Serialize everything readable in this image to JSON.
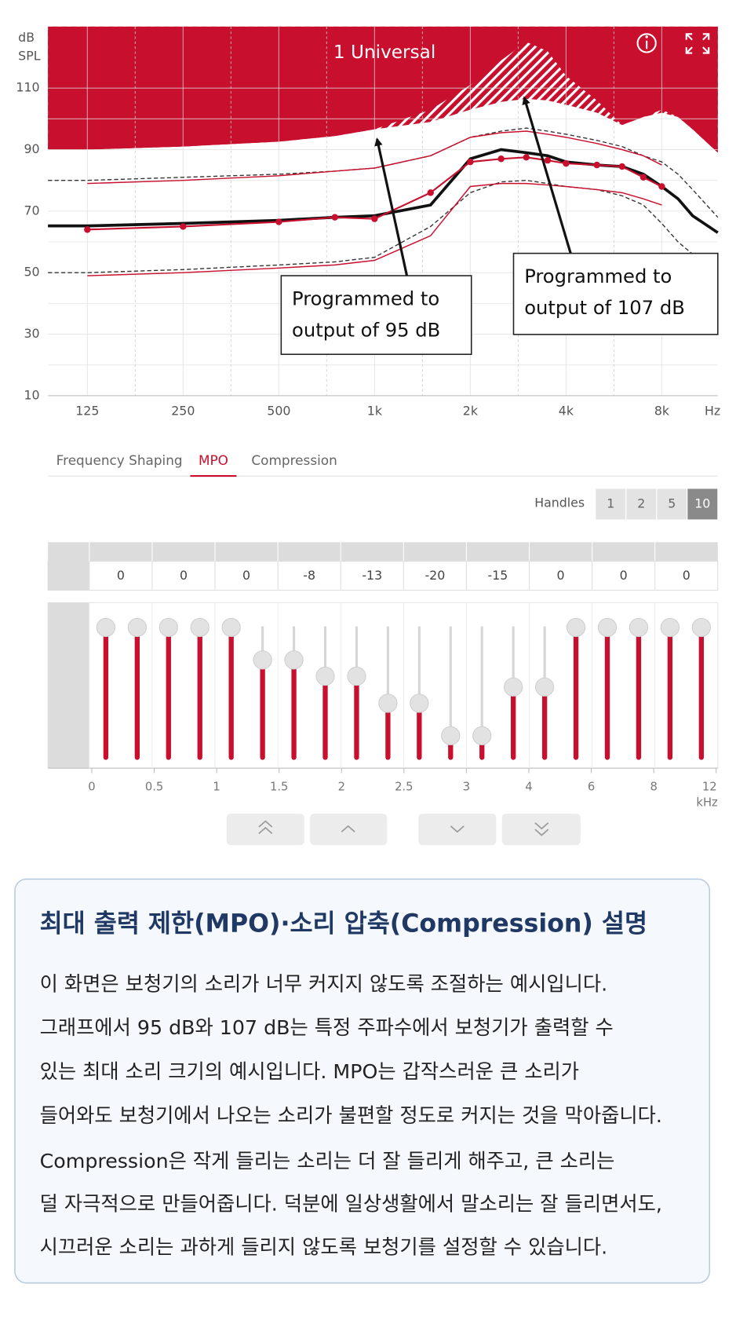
{
  "chart_data": {
    "type": "line",
    "title": "1 Universal",
    "y_label": [
      "dB",
      "SPL"
    ],
    "x_unit": "Hz",
    "x_scale": "log",
    "xlim": [
      94,
      12000
    ],
    "ylim": [
      10,
      130
    ],
    "xticks": [
      125,
      250,
      500,
      {
        "value": 1000,
        "label": "1k"
      },
      {
        "value": 2000,
        "label": "2k"
      },
      {
        "value": 4000,
        "label": "4k"
      },
      {
        "value": 8000,
        "label": "8k"
      }
    ],
    "yticks": [
      10,
      30,
      50,
      70,
      90,
      110
    ],
    "grid": true,
    "x": [
      94,
      125,
      250,
      500,
      750,
      1000,
      1500,
      2000,
      2500,
      3000,
      3500,
      4000,
      5000,
      6000,
      7000,
      8000,
      9000,
      10000,
      12000
    ],
    "series": [
      {
        "style": "hatch-above",
        "color": "#c8102e",
        "values": [
          90,
          90,
          91,
          92.6,
          94.4,
          96.6,
          99,
          103,
          105.5,
          106.5,
          106,
          104.6,
          102,
          98,
          100.6,
          102,
          100.6,
          96.6,
          89
        ]
      },
      {
        "style": "fill-above",
        "color": "#c8102e",
        "values": [
          90,
          90,
          91,
          92.6,
          94.4,
          96.6,
          103,
          111,
          119,
          125,
          122,
          114,
          106,
          98,
          100.6,
          103,
          100.6,
          96.6,
          89
        ]
      },
      {
        "style": "dashed",
        "color": "#333333",
        "values": [
          80,
          80,
          81,
          82,
          83,
          84,
          88,
          94,
          96,
          97,
          96,
          95,
          93,
          91,
          88,
          86,
          82,
          77,
          68
        ]
      },
      {
        "style": "dashed",
        "color": "#333333",
        "values": [
          50,
          50,
          51,
          52.5,
          53.5,
          55,
          65,
          76,
          79.5,
          80,
          79,
          78,
          77,
          75,
          72,
          66,
          60,
          56,
          50
        ]
      },
      {
        "style": "line",
        "color": "#c8102e",
        "values": [
          null,
          79,
          80,
          81.5,
          83,
          84,
          88,
          94,
          95.5,
          96,
          95,
          94,
          92,
          90,
          88,
          85,
          null,
          null,
          null
        ]
      },
      {
        "style": "line",
        "color": "#c8102e",
        "values": [
          null,
          49,
          50,
          51.5,
          52.5,
          54,
          62,
          78,
          79,
          79,
          78.5,
          78,
          77,
          76,
          74,
          72,
          null,
          null,
          null
        ]
      },
      {
        "style": "thick",
        "color": "#111111",
        "values": [
          65.2,
          65.2,
          66,
          67,
          68,
          68.5,
          72,
          87,
          90,
          89,
          88,
          86,
          85,
          84.5,
          82,
          78,
          74,
          68.5,
          63
        ]
      },
      {
        "style": "markers",
        "color": "#c8102e",
        "values": [
          null,
          64,
          65,
          66.5,
          68,
          67.5,
          76,
          86,
          87,
          87.5,
          86.5,
          85.5,
          85,
          84.5,
          81,
          78,
          null,
          null,
          null
        ]
      }
    ],
    "annotations": [
      {
        "lines": [
          "Programmed to",
          "output of 95 dB"
        ]
      },
      {
        "lines": [
          "Programmed to",
          "output of 107 dB"
        ]
      }
    ]
  },
  "tabs": [
    "Frequency Shaping",
    "MPO",
    "Compression"
  ],
  "active_tab": 1,
  "handles": {
    "label": "Handles",
    "options": [
      1,
      2,
      5,
      10
    ],
    "selected": 3
  },
  "gain_table": [
    0,
    0,
    0,
    -8,
    -13,
    -20,
    -15,
    0,
    0,
    0
  ],
  "sliders": {
    "range": [
      -24,
      0
    ],
    "values": [
      0,
      0,
      0,
      0,
      0,
      -6,
      -6,
      -9,
      -9,
      -14,
      -14,
      -20,
      -20,
      -11,
      -11,
      0,
      0,
      0,
      0,
      0
    ]
  },
  "slider_axis": {
    "ticks": [
      0,
      0.5,
      1,
      1.5,
      2,
      2.5,
      3,
      4,
      6,
      8,
      12
    ],
    "unit": "kHz"
  },
  "info": {
    "title": "최대 출력 제한(MPO)·소리 압축(Compression) 설명",
    "paragraphs": [
      [
        "이 화면은 보청기의 소리가 너무 커지지 않도록 조절하는 예시입니다.",
        "그래프에서 95 dB와 107 dB는 특정 주파수에서 보청기가 출력할 수",
        "있는 최대 소리 크기의 예시입니다. MPO는 갑작스러운 큰 소리가",
        "들어와도 보청기에서 나오는 소리가 불편할 정도로 커지는 것을 막아줍니다."
      ],
      [
        "Compression은 작게 들리는 소리는 더 잘 들리게 해주고, 큰 소리는",
        "덜 자극적으로 만들어줍니다. 덕분에 일상생활에서 말소리는 잘 들리면서도,",
        "시끄러운 소리는 과하게 들리지 않도록 보청기를 설정할 수 있습니다."
      ]
    ]
  }
}
